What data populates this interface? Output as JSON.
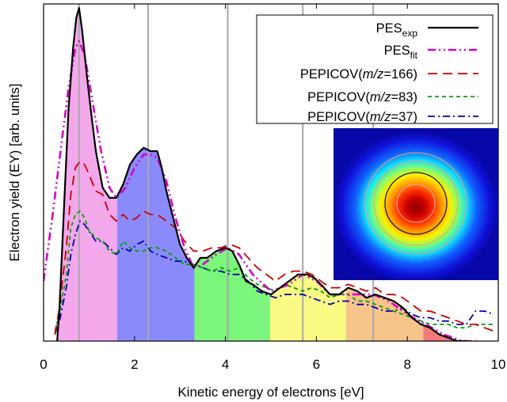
{
  "chart_data": {
    "type": "line",
    "xlabel": "Kinetic energy of electrons [eV]",
    "ylabel": "Electron yield (EY) [arb. units]",
    "xlim": [
      0,
      10
    ],
    "xticks": [
      "0",
      "2",
      "4",
      "6",
      "8",
      "10"
    ],
    "yticks": "none",
    "vlines": [
      0.78,
      2.3,
      4.05,
      5.7,
      7.25
    ],
    "legend_position": "top-right",
    "legend": [
      {
        "key": "pes_exp",
        "base": "PES",
        "sub": "exp",
        "italic": "",
        "after": "",
        "color": "#000000",
        "dash": "solid"
      },
      {
        "key": "pes_fit",
        "base": "PES",
        "sub": "fit",
        "italic": "",
        "after": "",
        "color": "#d400c8",
        "dash": "dash-dot-dot"
      },
      {
        "key": "m166",
        "base": "PEPICOV(",
        "italic": "m/z",
        "after": "=166)",
        "sub": "",
        "color": "#cc0000",
        "dash": "long-dash"
      },
      {
        "key": "m83",
        "base": "PEPICOV(",
        "italic": "m/z",
        "after": "=83)",
        "sub": "",
        "color": "#00a000",
        "dash": "short-dash"
      },
      {
        "key": "m37",
        "base": "PEPICOV(",
        "italic": "m/z",
        "after": "=37)",
        "sub": "",
        "color": "#0000aa",
        "dash": "dash-dot"
      }
    ],
    "bands": [
      {
        "from": 0.3,
        "to": 1.62,
        "color": "#f3a8ec"
      },
      {
        "from": 1.62,
        "to": 3.32,
        "color": "#8a8afd"
      },
      {
        "from": 3.32,
        "to": 4.98,
        "color": "#7cf57c"
      },
      {
        "from": 4.98,
        "to": 6.65,
        "color": "#fafa85"
      },
      {
        "from": 6.65,
        "to": 8.35,
        "color": "#f7c48a"
      },
      {
        "from": 8.35,
        "to": 9.4,
        "color": "#f77a7a"
      }
    ],
    "series": [
      {
        "key": "pes_exp",
        "x": [
          0.3,
          0.35,
          0.45,
          0.55,
          0.65,
          0.72,
          0.78,
          0.85,
          0.95,
          1.05,
          1.15,
          1.3,
          1.45,
          1.6,
          1.75,
          1.9,
          2.05,
          2.2,
          2.35,
          2.5,
          2.6,
          2.7,
          2.85,
          3.0,
          3.15,
          3.3,
          3.45,
          3.6,
          3.8,
          4.0,
          4.15,
          4.3,
          4.45,
          4.6,
          4.8,
          5.0,
          5.2,
          5.4,
          5.6,
          5.8,
          5.95,
          6.1,
          6.3,
          6.5,
          6.7,
          6.9,
          7.1,
          7.3,
          7.5,
          7.7,
          7.9,
          8.1,
          8.3,
          8.5,
          8.7,
          8.9,
          9.1,
          9.3
        ],
        "y": [
          0.0,
          0.1,
          0.4,
          0.7,
          0.88,
          0.97,
          1.0,
          0.93,
          0.8,
          0.68,
          0.57,
          0.46,
          0.43,
          0.43,
          0.47,
          0.53,
          0.56,
          0.58,
          0.57,
          0.57,
          0.52,
          0.45,
          0.37,
          0.29,
          0.25,
          0.22,
          0.25,
          0.25,
          0.27,
          0.28,
          0.27,
          0.23,
          0.18,
          0.17,
          0.15,
          0.14,
          0.16,
          0.18,
          0.2,
          0.2,
          0.19,
          0.17,
          0.14,
          0.14,
          0.16,
          0.15,
          0.13,
          0.14,
          0.13,
          0.12,
          0.1,
          0.07,
          0.05,
          0.04,
          0.02,
          0.01,
          0.0,
          0.0
        ]
      },
      {
        "key": "pes_fit",
        "x": [
          0.0,
          0.2,
          0.4,
          0.55,
          0.7,
          0.78,
          0.9,
          1.05,
          1.25,
          1.45,
          1.6,
          1.8,
          2.0,
          2.2,
          2.35,
          2.5,
          2.7,
          2.9,
          3.1,
          3.3,
          3.5,
          3.8,
          4.05,
          4.3,
          4.6,
          5.0,
          5.4,
          5.7,
          6.0,
          6.3,
          6.6,
          6.9,
          7.25,
          7.6,
          8.0,
          8.4,
          8.8,
          9.2,
          9.6
        ],
        "y": [
          0.18,
          0.38,
          0.6,
          0.76,
          0.88,
          0.9,
          0.86,
          0.74,
          0.58,
          0.46,
          0.43,
          0.46,
          0.52,
          0.56,
          0.56,
          0.55,
          0.48,
          0.37,
          0.28,
          0.22,
          0.23,
          0.26,
          0.28,
          0.26,
          0.2,
          0.15,
          0.17,
          0.2,
          0.18,
          0.14,
          0.14,
          0.14,
          0.14,
          0.12,
          0.08,
          0.05,
          0.02,
          0.0,
          0.0
        ]
      },
      {
        "key": "m166",
        "x": [
          0.25,
          0.35,
          0.5,
          0.6,
          0.7,
          0.8,
          0.9,
          1.0,
          1.15,
          1.3,
          1.45,
          1.6,
          1.75,
          1.9,
          2.05,
          2.2,
          2.35,
          2.5,
          2.7,
          2.9,
          3.1,
          3.3,
          3.5,
          3.7,
          3.9,
          4.1,
          4.3,
          4.5,
          4.7,
          4.9,
          5.1,
          5.3,
          5.5,
          5.7,
          5.9,
          6.1,
          6.3,
          6.5,
          6.7,
          6.9,
          7.1,
          7.3,
          7.5,
          7.7,
          7.9,
          8.1,
          8.3,
          8.5,
          8.7,
          8.9,
          9.1,
          9.3,
          9.5,
          9.7,
          9.9
        ],
        "y": [
          0.02,
          0.1,
          0.28,
          0.44,
          0.52,
          0.54,
          0.53,
          0.5,
          0.45,
          0.44,
          0.38,
          0.36,
          0.38,
          0.36,
          0.37,
          0.39,
          0.38,
          0.38,
          0.36,
          0.34,
          0.3,
          0.27,
          0.27,
          0.28,
          0.28,
          0.29,
          0.28,
          0.25,
          0.22,
          0.2,
          0.18,
          0.2,
          0.21,
          0.21,
          0.2,
          0.18,
          0.16,
          0.16,
          0.17,
          0.16,
          0.15,
          0.16,
          0.14,
          0.14,
          0.13,
          0.11,
          0.09,
          0.09,
          0.08,
          0.07,
          0.06,
          0.05,
          0.05,
          0.04,
          0.03
        ]
      },
      {
        "key": "m83",
        "x": [
          0.25,
          0.35,
          0.5,
          0.6,
          0.7,
          0.8,
          0.9,
          1.0,
          1.15,
          1.3,
          1.45,
          1.6,
          1.75,
          1.9,
          2.05,
          2.2,
          2.35,
          2.5,
          2.7,
          2.9,
          3.1,
          3.3,
          3.5,
          3.7,
          3.9,
          4.1,
          4.3,
          4.5,
          4.7,
          4.9,
          5.1,
          5.3,
          5.5,
          5.7,
          5.9,
          6.1,
          6.3,
          6.5,
          6.7,
          6.9,
          7.1,
          7.3,
          7.5,
          7.7,
          7.9,
          8.1,
          8.3,
          8.5,
          8.7,
          8.9,
          9.1,
          9.3,
          9.5,
          9.7,
          9.9
        ],
        "y": [
          0.03,
          0.08,
          0.2,
          0.34,
          0.38,
          0.39,
          0.37,
          0.33,
          0.31,
          0.3,
          0.27,
          0.26,
          0.3,
          0.28,
          0.27,
          0.27,
          0.28,
          0.28,
          0.27,
          0.25,
          0.23,
          0.23,
          0.22,
          0.21,
          0.22,
          0.21,
          0.22,
          0.19,
          0.17,
          0.16,
          0.15,
          0.17,
          0.16,
          0.15,
          0.16,
          0.15,
          0.13,
          0.14,
          0.14,
          0.12,
          0.12,
          0.11,
          0.1,
          0.09,
          0.08,
          0.07,
          0.06,
          0.05,
          0.05,
          0.05,
          0.04,
          0.04,
          0.05,
          0.05,
          0.05
        ]
      },
      {
        "key": "m37",
        "x": [
          0.25,
          0.35,
          0.5,
          0.6,
          0.7,
          0.8,
          0.9,
          1.0,
          1.15,
          1.3,
          1.45,
          1.6,
          1.75,
          1.9,
          2.05,
          2.2,
          2.35,
          2.5,
          2.7,
          2.9,
          3.1,
          3.3,
          3.5,
          3.7,
          3.9,
          4.1,
          4.3,
          4.5,
          4.7,
          4.9,
          5.1,
          5.3,
          5.5,
          5.7,
          5.9,
          6.1,
          6.3,
          6.5,
          6.7,
          6.9,
          7.1,
          7.3,
          7.5,
          7.7,
          7.9,
          8.1,
          8.3,
          8.5,
          8.7,
          8.9,
          9.1,
          9.3,
          9.5,
          9.7,
          9.9
        ],
        "y": [
          0.02,
          0.06,
          0.16,
          0.26,
          0.32,
          0.36,
          0.35,
          0.33,
          0.3,
          0.3,
          0.28,
          0.26,
          0.28,
          0.27,
          0.29,
          0.3,
          0.27,
          0.26,
          0.25,
          0.24,
          0.24,
          0.23,
          0.22,
          0.21,
          0.21,
          0.2,
          0.2,
          0.18,
          0.15,
          0.14,
          0.13,
          0.14,
          0.14,
          0.14,
          0.13,
          0.12,
          0.11,
          0.12,
          0.12,
          0.11,
          0.11,
          0.1,
          0.09,
          0.09,
          0.1,
          0.08,
          0.07,
          0.07,
          0.06,
          0.06,
          0.05,
          0.05,
          0.09,
          0.09,
          0.08
        ]
      }
    ]
  }
}
